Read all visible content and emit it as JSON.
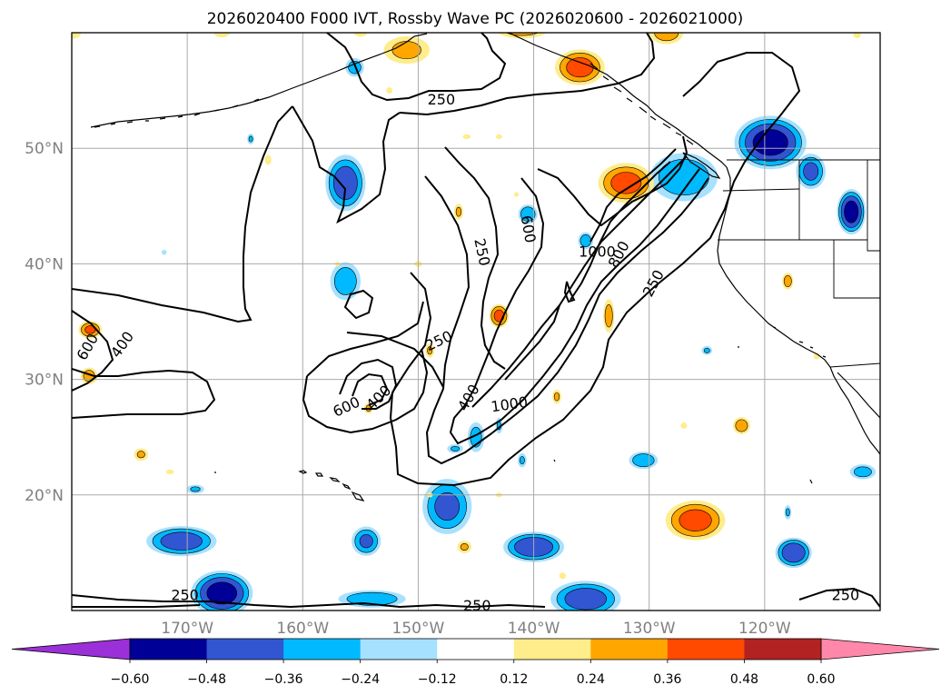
{
  "title": "2026020400 F000 IVT, Rossby Wave PC (2026020600 - 2026021000)",
  "map": {
    "lon_range": [
      -180,
      -110
    ],
    "lat_range": [
      10,
      60
    ],
    "lon_ticks": [
      {
        "value": -170,
        "label": "170°W"
      },
      {
        "value": -160,
        "label": "160°W"
      },
      {
        "value": -150,
        "label": "150°W"
      },
      {
        "value": -140,
        "label": "140°W"
      },
      {
        "value": -130,
        "label": "130°W"
      },
      {
        "value": -120,
        "label": "120°W"
      }
    ],
    "lat_ticks": [
      {
        "value": 20,
        "label": "20°N"
      },
      {
        "value": 30,
        "label": "30°N"
      },
      {
        "value": 40,
        "label": "40°N"
      },
      {
        "value": 50,
        "label": "50°N"
      }
    ],
    "grid": true
  },
  "ivt_contours": {
    "levels": [
      250,
      400,
      600,
      800,
      1000
    ],
    "labels": [
      {
        "text": "250",
        "lon": -148,
        "lat": 54.2,
        "rot": 0
      },
      {
        "text": "250",
        "lon": -144.5,
        "lat": 41.0,
        "rot": 78
      },
      {
        "text": "600",
        "lon": -140.5,
        "lat": 43.0,
        "rot": 80
      },
      {
        "text": "1000",
        "lon": -134.5,
        "lat": 41.0,
        "rot": 0
      },
      {
        "text": "800",
        "lon": -132.6,
        "lat": 40.8,
        "rot": -62
      },
      {
        "text": "250",
        "lon": -129.6,
        "lat": 38.3,
        "rot": -62
      },
      {
        "text": "250",
        "lon": -148.2,
        "lat": 33.3,
        "rot": -25
      },
      {
        "text": "600",
        "lon": -178.6,
        "lat": 32.8,
        "rot": -60
      },
      {
        "text": "400",
        "lon": -175.6,
        "lat": 33.0,
        "rot": -55
      },
      {
        "text": "600",
        "lon": -156.2,
        "lat": 27.6,
        "rot": -25
      },
      {
        "text": "400",
        "lon": -153.4,
        "lat": 28.4,
        "rot": -45
      },
      {
        "text": "400",
        "lon": -145.6,
        "lat": 28.4,
        "rot": -60
      },
      {
        "text": "1000",
        "lon": -142.1,
        "lat": 27.8,
        "rot": -8
      },
      {
        "text": "250",
        "lon": -170.2,
        "lat": 11.3,
        "rot": 0
      },
      {
        "text": "250",
        "lon": -144.9,
        "lat": 10.4,
        "rot": 0
      },
      {
        "text": "250",
        "lon": -113.0,
        "lat": 11.3,
        "rot": 0
      }
    ]
  },
  "pc_field": {
    "negative_blobs": [
      {
        "lon": -156.3,
        "lat": 47.0,
        "rx": 2.0,
        "ry": 2.8,
        "max": -0.45
      },
      {
        "lon": -156.3,
        "lat": 38.5,
        "rx": 1.6,
        "ry": 2.0,
        "max": -0.33
      },
      {
        "lon": -127.0,
        "lat": 47.5,
        "rx": 3.5,
        "ry": 2.5,
        "max": -0.35
      },
      {
        "lon": -119.5,
        "lat": 50.5,
        "rx": 3.5,
        "ry": 2.6,
        "max": -0.55
      },
      {
        "lon": -116.0,
        "lat": 48.0,
        "rx": 1.5,
        "ry": 1.8,
        "max": -0.4
      },
      {
        "lon": -112.5,
        "lat": 44.5,
        "rx": 1.4,
        "ry": 2.2,
        "max": -0.55
      },
      {
        "lon": -140.5,
        "lat": 44.3,
        "rx": 1.0,
        "ry": 1.0,
        "max": -0.35
      },
      {
        "lon": -135.5,
        "lat": 42.0,
        "rx": 0.8,
        "ry": 0.9,
        "max": -0.32
      },
      {
        "lon": -125.0,
        "lat": 32.5,
        "rx": 0.6,
        "ry": 0.5,
        "max": -0.25
      },
      {
        "lon": -130.5,
        "lat": 23.0,
        "rx": 1.5,
        "ry": 0.9,
        "max": -0.35
      },
      {
        "lon": -111.5,
        "lat": 22.0,
        "rx": 1.4,
        "ry": 0.8,
        "max": -0.3
      },
      {
        "lon": -170.5,
        "lat": 16.0,
        "rx": 3.5,
        "ry": 1.5,
        "max": -0.45
      },
      {
        "lon": -167.0,
        "lat": 11.5,
        "rx": 3.0,
        "ry": 2.2,
        "max": -0.55
      },
      {
        "lon": -147.5,
        "lat": 19.0,
        "rx": 2.5,
        "ry": 2.8,
        "max": -0.4
      },
      {
        "lon": -154.5,
        "lat": 16.0,
        "rx": 1.5,
        "ry": 1.5,
        "max": -0.38
      },
      {
        "lon": -140.0,
        "lat": 15.5,
        "rx": 3.0,
        "ry": 1.5,
        "max": -0.48
      },
      {
        "lon": -135.5,
        "lat": 11.0,
        "rx": 3.5,
        "ry": 1.8,
        "max": -0.45
      },
      {
        "lon": -117.5,
        "lat": 15.0,
        "rx": 1.8,
        "ry": 1.5,
        "max": -0.48
      },
      {
        "lon": -154.0,
        "lat": 11.0,
        "rx": 3.5,
        "ry": 0.9,
        "max": -0.35
      },
      {
        "lon": -141.0,
        "lat": 23.0,
        "rx": 0.5,
        "ry": 0.8,
        "max": -0.25
      },
      {
        "lon": -145.0,
        "lat": 25.0,
        "rx": 0.9,
        "ry": 1.6,
        "max": -0.3
      },
      {
        "lon": -143.0,
        "lat": 26.0,
        "rx": 0.4,
        "ry": 0.9,
        "max": -0.25
      },
      {
        "lon": -146.8,
        "lat": 24.0,
        "rx": 0.9,
        "ry": 0.5,
        "max": -0.25
      },
      {
        "lon": -118.0,
        "lat": 18.5,
        "rx": 0.4,
        "ry": 0.8,
        "max": -0.25
      },
      {
        "lon": -169.3,
        "lat": 20.5,
        "rx": 1.0,
        "ry": 0.5,
        "max": -0.25
      },
      {
        "lon": -164.5,
        "lat": 50.8,
        "rx": 0.4,
        "ry": 0.6,
        "max": -0.25
      },
      {
        "lon": -172.0,
        "lat": 41.0,
        "rx": 0.3,
        "ry": 0.3,
        "max": -0.2
      },
      {
        "lon": -155.5,
        "lat": 57.0,
        "rx": 1.0,
        "ry": 1.0,
        "max": -0.3
      }
    ],
    "positive_blobs": [
      {
        "lon": -136.0,
        "lat": 57.0,
        "rx": 2.5,
        "ry": 1.8,
        "max": 0.42
      },
      {
        "lon": -132.0,
        "lat": 47.0,
        "rx": 2.8,
        "ry": 2.0,
        "max": 0.42
      },
      {
        "lon": -126.0,
        "lat": 17.8,
        "rx": 3.0,
        "ry": 2.0,
        "max": 0.42
      },
      {
        "lon": -141.0,
        "lat": 60.5,
        "rx": 3.0,
        "ry": 1.2,
        "max": 0.35
      },
      {
        "lon": -128.5,
        "lat": 60.0,
        "rx": 1.8,
        "ry": 1.2,
        "max": 0.32
      },
      {
        "lon": -151.0,
        "lat": 58.5,
        "rx": 2.5,
        "ry": 1.5,
        "max": 0.28
      },
      {
        "lon": -143.0,
        "lat": 35.5,
        "rx": 1.0,
        "ry": 1.2,
        "max": 0.4
      },
      {
        "lon": -178.4,
        "lat": 34.3,
        "rx": 1.2,
        "ry": 0.9,
        "max": 0.38
      },
      {
        "lon": -178.5,
        "lat": 30.3,
        "rx": 0.9,
        "ry": 0.9,
        "max": 0.3
      },
      {
        "lon": -133.5,
        "lat": 35.5,
        "rx": 0.6,
        "ry": 1.8,
        "max": 0.3
      },
      {
        "lon": -118.0,
        "lat": 38.5,
        "rx": 0.6,
        "ry": 0.9,
        "max": 0.3
      },
      {
        "lon": -146.5,
        "lat": 44.5,
        "rx": 0.5,
        "ry": 0.9,
        "max": 0.26
      },
      {
        "lon": -149.0,
        "lat": 32.5,
        "rx": 0.5,
        "ry": 0.8,
        "max": 0.25
      },
      {
        "lon": -154.3,
        "lat": 27.5,
        "rx": 0.5,
        "ry": 0.6,
        "max": 0.26
      },
      {
        "lon": -122.0,
        "lat": 26.0,
        "rx": 0.9,
        "ry": 0.9,
        "max": 0.32
      },
      {
        "lon": -138.0,
        "lat": 28.5,
        "rx": 0.5,
        "ry": 0.8,
        "max": 0.26
      },
      {
        "lon": -163.0,
        "lat": 49.0,
        "rx": 0.4,
        "ry": 0.6,
        "max": 0.2
      },
      {
        "lon": -174.0,
        "lat": 23.5,
        "rx": 0.8,
        "ry": 0.7,
        "max": 0.25
      },
      {
        "lon": -146.0,
        "lat": 15.5,
        "rx": 0.8,
        "ry": 0.7,
        "max": 0.25
      },
      {
        "lon": -137.5,
        "lat": 13.0,
        "rx": 0.4,
        "ry": 0.4,
        "max": 0.2
      },
      {
        "lon": -149.0,
        "lat": 20.0,
        "rx": 0.4,
        "ry": 0.3,
        "max": 0.18
      },
      {
        "lon": -143.0,
        "lat": 20.0,
        "rx": 0.4,
        "ry": 0.3,
        "max": 0.18
      },
      {
        "lon": -171.5,
        "lat": 22.0,
        "rx": 0.5,
        "ry": 0.3,
        "max": 0.18
      },
      {
        "lon": -180.0,
        "lat": 60.0,
        "rx": 1.2,
        "ry": 0.8,
        "max": 0.18
      },
      {
        "lon": -167.0,
        "lat": 60.0,
        "rx": 1.0,
        "ry": 0.6,
        "max": 0.18
      },
      {
        "lon": -112.0,
        "lat": 59.8,
        "rx": 0.5,
        "ry": 0.4,
        "max": 0.18
      },
      {
        "lon": -141.5,
        "lat": 46.0,
        "rx": 0.3,
        "ry": 0.3,
        "max": 0.18
      },
      {
        "lon": -152.5,
        "lat": 55.0,
        "rx": 0.4,
        "ry": 0.4,
        "max": 0.18
      },
      {
        "lon": -155.0,
        "lat": 60.0,
        "rx": 0.8,
        "ry": 0.5,
        "max": 0.2
      },
      {
        "lon": -145.8,
        "lat": 51.0,
        "rx": 0.5,
        "ry": 0.3,
        "max": 0.18
      },
      {
        "lon": -157.0,
        "lat": 40.0,
        "rx": 0.3,
        "ry": 0.3,
        "max": 0.18
      },
      {
        "lon": -150.0,
        "lat": 40.0,
        "rx": 0.5,
        "ry": 0.4,
        "max": 0.18
      },
      {
        "lon": -115.5,
        "lat": 32.0,
        "rx": 0.4,
        "ry": 0.4,
        "max": 0.18
      },
      {
        "lon": -127.0,
        "lat": 26.0,
        "rx": 0.4,
        "ry": 0.4,
        "max": 0.18
      },
      {
        "lon": -143.0,
        "lat": 51.0,
        "rx": 0.4,
        "ry": 0.3,
        "max": 0.18
      }
    ]
  },
  "colorbar": {
    "levels": [
      -0.72,
      -0.6,
      -0.48,
      -0.36,
      -0.24,
      -0.12,
      0.12,
      0.24,
      0.36,
      0.48,
      0.6,
      0.72
    ],
    "colors": [
      "#8b00cd",
      "#000096",
      "#3256d2",
      "#00b9ff",
      "#a6e1ff",
      "#ffffff",
      "#ffec8b",
      "#ffa600",
      "#ff4a00",
      "#b22222",
      "#ff89ac"
    ],
    "under_color": "#9b30d9",
    "over_color": "#ff88aa",
    "tick_labels": [
      "−0.60",
      "−0.48",
      "−0.36",
      "−0.24",
      "−0.12",
      "0.12",
      "0.24",
      "0.36",
      "0.48",
      "0.60"
    ]
  }
}
